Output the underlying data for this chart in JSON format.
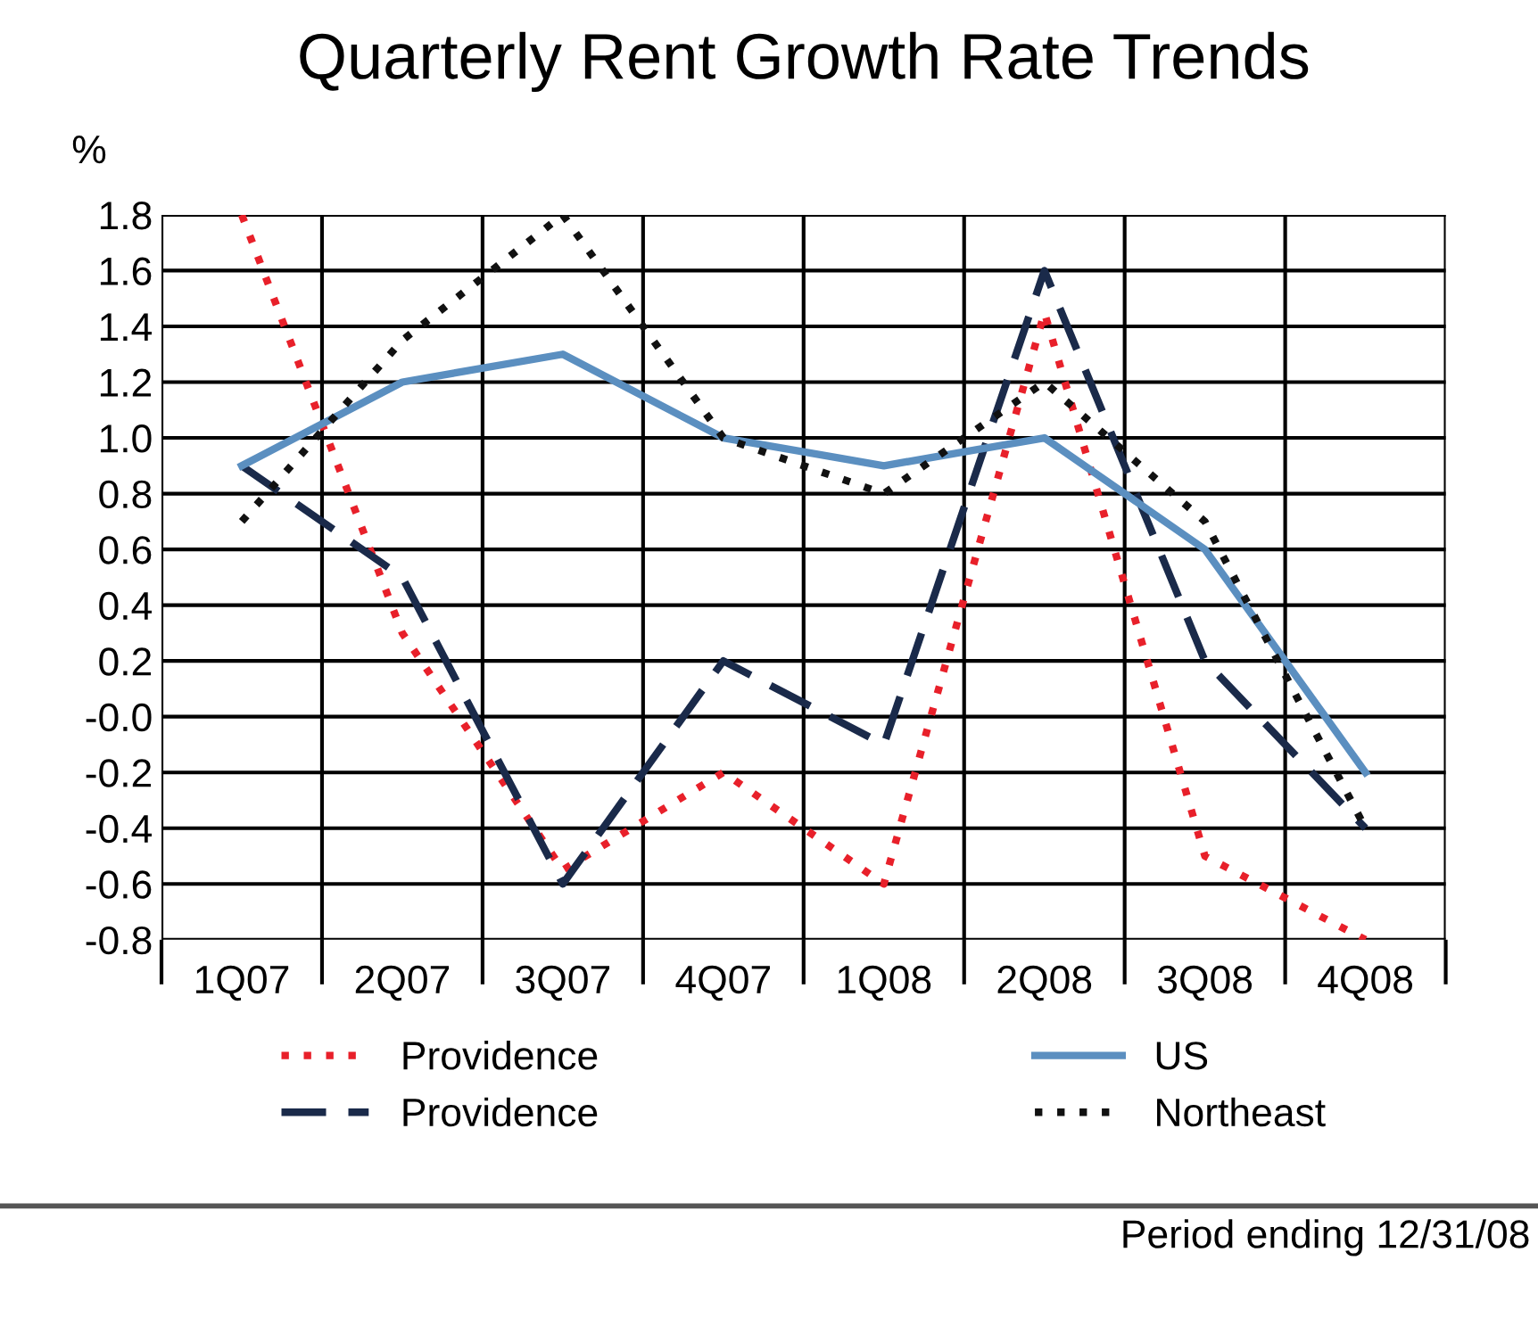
{
  "chart_data": {
    "type": "line",
    "title": "Quarterly Rent Growth Rate Trends",
    "ylabel": "%",
    "categories": [
      "1Q07",
      "2Q07",
      "3Q07",
      "4Q07",
      "1Q08",
      "2Q08",
      "3Q08",
      "4Q08"
    ],
    "series": [
      {
        "name": "Providence",
        "color": "#e8202a",
        "line_style": "dotted",
        "values": [
          1.8,
          0.3,
          -0.55,
          -0.2,
          -0.6,
          1.45,
          -0.5,
          -0.8
        ]
      },
      {
        "name": "Providence",
        "color": "#1a2a4a",
        "line_style": "dashed",
        "values": [
          0.9,
          0.5,
          -0.6,
          0.2,
          -0.1,
          1.6,
          0.2,
          -0.4
        ]
      },
      {
        "name": "US",
        "color": "#5b8fc0",
        "line_style": "solid",
        "values": [
          0.9,
          1.2,
          1.3,
          1.0,
          0.9,
          1.0,
          0.6,
          -0.2
        ]
      },
      {
        "name": "Northeast",
        "color": "#111111",
        "line_style": "dotted",
        "values": [
          0.7,
          1.35,
          1.8,
          1.0,
          0.8,
          1.2,
          0.7,
          -0.4
        ]
      }
    ],
    "ylim": [
      -0.8,
      1.8
    ],
    "yticks": [
      1.8,
      1.6,
      1.4,
      1.2,
      {
        "value": 1.0,
        "label": "1.0"
      },
      0.8,
      0.6,
      0.4,
      0.2,
      {
        "value": 0,
        "label": "-0.0"
      },
      -0.2,
      -0.4,
      -0.6,
      -0.8
    ],
    "grid": true,
    "legend": "bottom",
    "marker": "none",
    "annotations": [
      "Period ending 12/31/08"
    ]
  }
}
